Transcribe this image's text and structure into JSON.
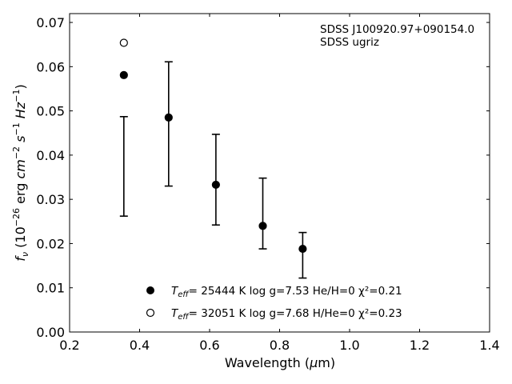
{
  "chart_data": {
    "type": "scatter",
    "xlabel": "Wavelength (μm)",
    "ylabel": "fν (10⁻²⁶ erg cm⁻² s⁻¹ Hz⁻¹)",
    "xlim": [
      0.2,
      1.4
    ],
    "ylim": [
      0.0,
      0.072
    ],
    "xticks": [
      "0.2",
      "0.4",
      "0.6",
      "0.8",
      "1.0",
      "1.2",
      "1.4"
    ],
    "yticks": [
      "0.00",
      "0.01",
      "0.02",
      "0.03",
      "0.04",
      "0.05",
      "0.06",
      "0.07"
    ],
    "xtick_values": [
      0.2,
      0.4,
      0.6,
      0.8,
      1.0,
      1.2,
      1.4
    ],
    "ytick_values": [
      0.0,
      0.01,
      0.02,
      0.03,
      0.04,
      0.05,
      0.06,
      0.07
    ],
    "annotations": [
      "SDSS J100920.97+090154.0",
      "SDSS ugriz"
    ],
    "observed": {
      "x": [
        0.355,
        0.483,
        0.618,
        0.752,
        0.866
      ],
      "lower": [
        0.0262,
        0.033,
        0.0242,
        0.0188,
        0.0122
      ],
      "upper": [
        0.0487,
        0.0611,
        0.0447,
        0.0348,
        0.0225
      ]
    },
    "series": [
      {
        "name": "T_eff= 25444 K  log g=7.53  He/H=0  χ²=0.21",
        "marker": "filled",
        "x": [
          0.355,
          0.483,
          0.618,
          0.752,
          0.866
        ],
        "y": [
          0.0581,
          0.0485,
          0.0333,
          0.024,
          0.0188
        ]
      },
      {
        "name": "T_eff= 32051 K  log g=7.68  H/He=0  χ²=0.23",
        "marker": "open",
        "x": [
          0.355
        ],
        "y": [
          0.0654
        ]
      }
    ],
    "legend": {
      "location": "lower center",
      "entries": [
        {
          "teff": "25444",
          "rest": "= 25444 K  log g=7.53  He/H=0  χ²=0.21"
        },
        {
          "teff": "32051",
          "rest": "= 32051 K  log g=7.68  H/He=0  χ²=0.23"
        }
      ]
    },
    "grid": false
  }
}
